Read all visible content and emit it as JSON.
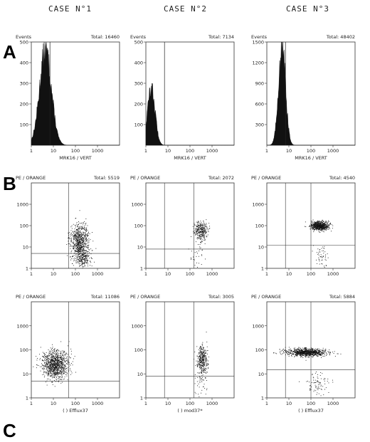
{
  "headers": {
    "case1": "CASE N°1",
    "case2": "CASE N°2",
    "case3": "CASE N°3"
  },
  "row_labels": {
    "a": "A",
    "b": "B",
    "c": "C"
  },
  "chart_data": [
    {
      "id": "A1",
      "type": "histogram",
      "ylabel": "Events",
      "total_label": "Total: 16460",
      "xlabel": "MRK16 / VERT",
      "xscale": "log",
      "xlim": [
        1,
        10000
      ],
      "ylim": [
        0,
        500
      ],
      "x_ticks": [
        "1",
        "10",
        "100",
        "1000"
      ],
      "y_ticks": [
        "100",
        "200",
        "300",
        "400",
        "500"
      ],
      "marker_x": 7,
      "distribution": {
        "peak_x": 4.5,
        "peak_y": 460,
        "spread": 0.27
      }
    },
    {
      "id": "A2",
      "type": "histogram",
      "ylabel": "Events",
      "total_label": "Total: 7134",
      "xlabel": "MRK16 / VERT",
      "xscale": "log",
      "xlim": [
        1,
        10000
      ],
      "ylim": [
        0,
        500
      ],
      "x_ticks": [
        "1",
        "10",
        "100",
        "1000"
      ],
      "y_ticks": [
        "100",
        "200",
        "300",
        "400",
        "500"
      ],
      "marker_x": 7,
      "distribution": {
        "peak_x": 1.8,
        "peak_y": 280,
        "spread": 0.17
      }
    },
    {
      "id": "A3",
      "type": "histogram",
      "ylabel": "Events",
      "total_label": "Total: 48402",
      "xlabel": "MRK16 / VERT",
      "xscale": "log",
      "xlim": [
        1,
        10000
      ],
      "ylim": [
        0,
        1500
      ],
      "x_ticks": [
        "1",
        "10",
        "100",
        "1000"
      ],
      "y_ticks": [
        "300",
        "600",
        "900",
        "1200",
        "1500"
      ],
      "marker_x": 7,
      "distribution": {
        "peak_x": 5,
        "peak_y": 1450,
        "spread": 0.16
      }
    },
    {
      "id": "B1",
      "type": "scatter",
      "ylabel": "PE / ORANGE",
      "total_label": "Total: 5519",
      "xscale": "log",
      "yscale": "log",
      "xlim": [
        1,
        10000
      ],
      "ylim": [
        1,
        10000
      ],
      "x_ticks": [
        "1",
        "10",
        "100",
        "1000"
      ],
      "y_ticks": [
        "1",
        "10",
        "100",
        "1000"
      ],
      "gates_x": [
        50
      ],
      "gate_y": 5,
      "clusters": [
        {
          "x_center": 150,
          "y_center": 20,
          "x_spread": 0.2,
          "y_spread": 0.4,
          "n": 700
        },
        {
          "x_center": 200,
          "y_center": 3,
          "x_spread": 0.2,
          "y_spread": 0.2,
          "n": 200
        }
      ]
    },
    {
      "id": "B2",
      "type": "scatter",
      "ylabel": "PE / ORANGE",
      "total_label": "Total: 2072",
      "xscale": "log",
      "yscale": "log",
      "xlim": [
        1,
        10000
      ],
      "ylim": [
        1,
        10000
      ],
      "x_ticks": [
        "1",
        "10",
        "100",
        "1000"
      ],
      "y_ticks": [
        "1",
        "10",
        "100",
        "1000"
      ],
      "gates_x": [
        7,
        150
      ],
      "gate_y": 8,
      "clusters": [
        {
          "x_center": 300,
          "y_center": 60,
          "x_spread": 0.15,
          "y_spread": 0.22,
          "n": 300
        },
        {
          "x_center": 200,
          "y_center": 5,
          "x_spread": 0.2,
          "y_spread": 0.3,
          "n": 30
        }
      ]
    },
    {
      "id": "B3",
      "type": "scatter",
      "ylabel": "PE / ORANGE",
      "total_label": "Total: 4540",
      "xscale": "log",
      "yscale": "log",
      "xlim": [
        1,
        10000
      ],
      "ylim": [
        1,
        10000
      ],
      "x_ticks": [
        "1",
        "10",
        "100",
        "1000"
      ],
      "y_ticks": [
        "1",
        "10",
        "100",
        "1000"
      ],
      "gates_x": [
        7,
        100
      ],
      "gate_y": 12,
      "clusters": [
        {
          "x_center": 250,
          "y_center": 100,
          "x_spread": 0.2,
          "y_spread": 0.1,
          "n": 700
        },
        {
          "x_center": 300,
          "y_center": 4,
          "x_spread": 0.15,
          "y_spread": 0.25,
          "n": 50
        }
      ]
    },
    {
      "id": "C1",
      "type": "scatter",
      "ylabel": "PE / ORANGE",
      "total_label": "Total: 11086",
      "xlabel": "(      ) Efflux37",
      "xscale": "log",
      "yscale": "log",
      "xlim": [
        1,
        10000
      ],
      "ylim": [
        1,
        10000
      ],
      "x_ticks": [
        "1",
        "10",
        "100",
        "1000"
      ],
      "y_ticks": [
        "1",
        "10",
        "100",
        "1000"
      ],
      "gates_x": [
        50
      ],
      "gate_y": 5,
      "clusters": [
        {
          "x_center": 12,
          "y_center": 25,
          "x_spread": 0.3,
          "y_spread": 0.3,
          "n": 1000
        }
      ]
    },
    {
      "id": "C2",
      "type": "scatter",
      "ylabel": "PE / ORANGE",
      "total_label": "Total: 3005",
      "xlabel": "(      ) mod37*",
      "xscale": "log",
      "yscale": "log",
      "xlim": [
        1,
        10000
      ],
      "ylim": [
        1,
        10000
      ],
      "x_ticks": [
        "1",
        "10",
        "100",
        "1000"
      ],
      "y_ticks": [
        "1",
        "10",
        "100",
        "1000"
      ],
      "gates_x": [
        7,
        150
      ],
      "gate_y": 8,
      "clusters": [
        {
          "x_center": 350,
          "y_center": 40,
          "x_spread": 0.12,
          "y_spread": 0.3,
          "n": 350
        },
        {
          "x_center": 300,
          "y_center": 4,
          "x_spread": 0.15,
          "y_spread": 0.25,
          "n": 40
        }
      ]
    },
    {
      "id": "C3",
      "type": "scatter",
      "ylabel": "PE / ORANGE",
      "total_label": "Total: 5884",
      "xlabel": "(      ) Efflux37",
      "xscale": "log",
      "yscale": "log",
      "xlim": [
        1,
        10000
      ],
      "ylim": [
        1,
        10000
      ],
      "x_ticks": [
        "1",
        "10",
        "100",
        "1000"
      ],
      "y_ticks": [
        "1",
        "10",
        "100",
        "1000"
      ],
      "gates_x": [
        7,
        100
      ],
      "gate_y": 15,
      "clusters": [
        {
          "x_center": 60,
          "y_center": 80,
          "x_spread": 0.45,
          "y_spread": 0.08,
          "n": 900
        },
        {
          "x_center": 200,
          "y_center": 4,
          "x_spread": 0.3,
          "y_spread": 0.25,
          "n": 80
        }
      ]
    }
  ]
}
